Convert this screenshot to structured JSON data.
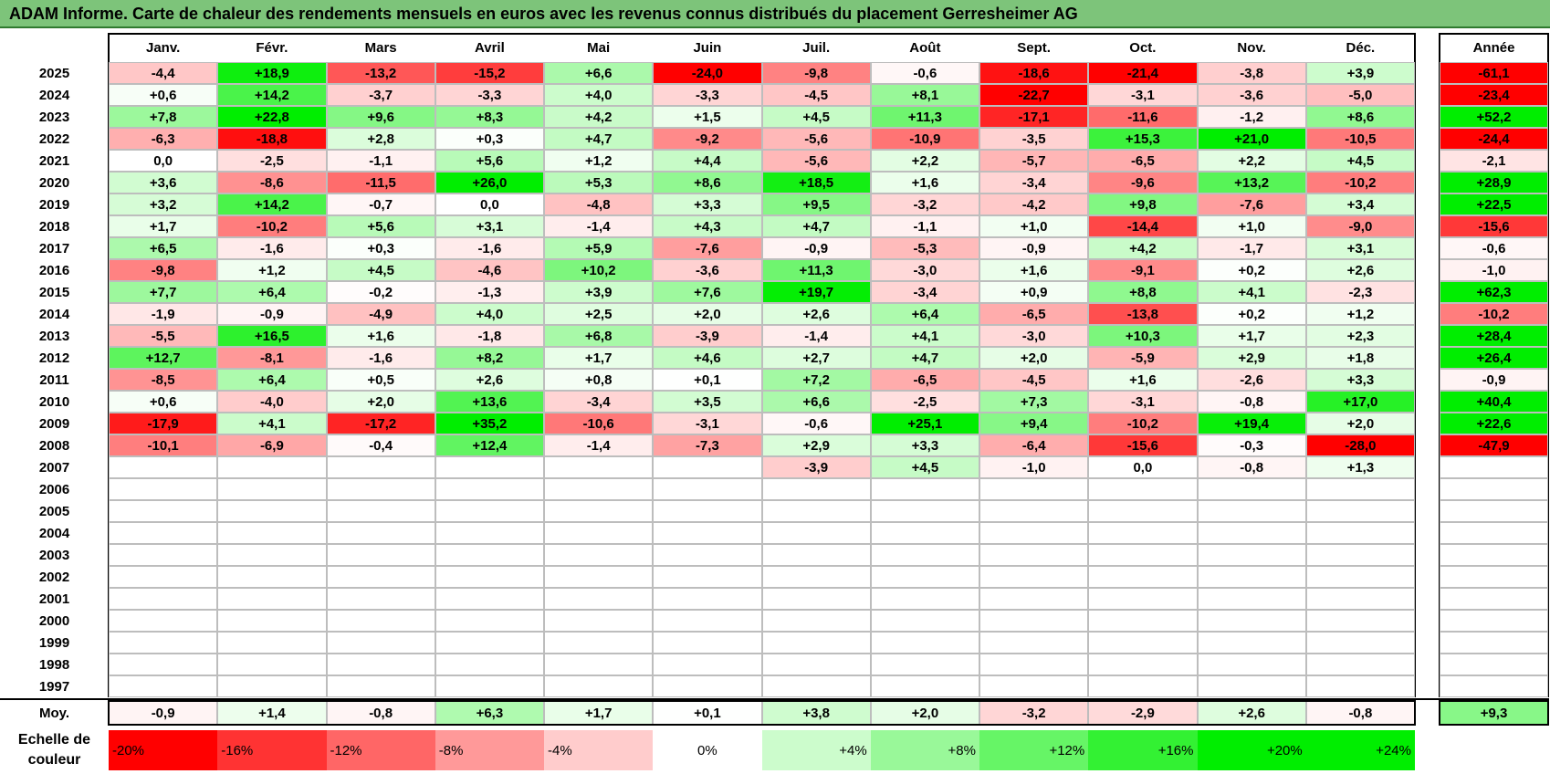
{
  "page": {
    "title": "ADAM Informe. Carte de chaleur des rendements mensuels en euros avec les revenus connus distribués du placement Gerresheimer AG"
  },
  "chart_data": {
    "type": "heatmap",
    "title": "ADAM Informe. Carte de chaleur des rendements mensuels en euros avec les revenus connus distribués du placement Gerresheimer AG",
    "columns": [
      "Janv.",
      "Févr.",
      "Mars",
      "Avril",
      "Mai",
      "Juin",
      "Juil.",
      "Août",
      "Sept.",
      "Oct.",
      "Nov.",
      "Déc."
    ],
    "year_column_label": "Année",
    "average_label": "Moy.",
    "years": [
      "2025",
      "2024",
      "2023",
      "2022",
      "2021",
      "2020",
      "2019",
      "2018",
      "2017",
      "2016",
      "2015",
      "2014",
      "2013",
      "2012",
      "2011",
      "2010",
      "2009",
      "2008",
      "2007",
      "2006",
      "2005",
      "2004",
      "2003",
      "2002",
      "2001",
      "2000",
      "1999",
      "1998",
      "1997"
    ],
    "values": [
      [
        "-4,4",
        "+18,9",
        "-13,2",
        "-15,2",
        "+6,6",
        "-24,0",
        "-9,8",
        "-0,6",
        "-18,6",
        "-21,4",
        "-3,8",
        "+3,9"
      ],
      [
        "+0,6",
        "+14,2",
        "-3,7",
        "-3,3",
        "+4,0",
        "-3,3",
        "-4,5",
        "+8,1",
        "-22,7",
        "-3,1",
        "-3,6",
        "-5,0"
      ],
      [
        "+7,8",
        "+22,8",
        "+9,6",
        "+8,3",
        "+4,2",
        "+1,5",
        "+4,5",
        "+11,3",
        "-17,1",
        "-11,6",
        "-1,2",
        "+8,6"
      ],
      [
        "-6,3",
        "-18,8",
        "+2,8",
        "+0,3",
        "+4,7",
        "-9,2",
        "-5,6",
        "-10,9",
        "-3,5",
        "+15,3",
        "+21,0",
        "-10,5"
      ],
      [
        "0,0",
        "-2,5",
        "-1,1",
        "+5,6",
        "+1,2",
        "+4,4",
        "-5,6",
        "+2,2",
        "-5,7",
        "-6,5",
        "+2,2",
        "+4,5"
      ],
      [
        "+3,6",
        "-8,6",
        "-11,5",
        "+26,0",
        "+5,3",
        "+8,6",
        "+18,5",
        "+1,6",
        "-3,4",
        "-9,6",
        "+13,2",
        "-10,2"
      ],
      [
        "+3,2",
        "+14,2",
        "-0,7",
        "0,0",
        "-4,8",
        "+3,3",
        "+9,5",
        "-3,2",
        "-4,2",
        "+9,8",
        "-7,6",
        "+3,4"
      ],
      [
        "+1,7",
        "-10,2",
        "+5,6",
        "+3,1",
        "-1,4",
        "+4,3",
        "+4,7",
        "-1,1",
        "+1,0",
        "-14,4",
        "+1,0",
        "-9,0"
      ],
      [
        "+6,5",
        "-1,6",
        "+0,3",
        "-1,6",
        "+5,9",
        "-7,6",
        "-0,9",
        "-5,3",
        "-0,9",
        "+4,2",
        "-1,7",
        "+3,1"
      ],
      [
        "-9,8",
        "+1,2",
        "+4,5",
        "-4,6",
        "+10,2",
        "-3,6",
        "+11,3",
        "-3,0",
        "+1,6",
        "-9,1",
        "+0,2",
        "+2,6"
      ],
      [
        "+7,7",
        "+6,4",
        "-0,2",
        "-1,3",
        "+3,9",
        "+7,6",
        "+19,7",
        "-3,4",
        "+0,9",
        "+8,8",
        "+4,1",
        "-2,3"
      ],
      [
        "-1,9",
        "-0,9",
        "-4,9",
        "+4,0",
        "+2,5",
        "+2,0",
        "+2,6",
        "+6,4",
        "-6,5",
        "-13,8",
        "+0,2",
        "+1,2"
      ],
      [
        "-5,5",
        "+16,5",
        "+1,6",
        "-1,8",
        "+6,8",
        "-3,9",
        "-1,4",
        "+4,1",
        "-3,0",
        "+10,3",
        "+1,7",
        "+2,3"
      ],
      [
        "+12,7",
        "-8,1",
        "-1,6",
        "+8,2",
        "+1,7",
        "+4,6",
        "+2,7",
        "+4,7",
        "+2,0",
        "-5,9",
        "+2,9",
        "+1,8"
      ],
      [
        "-8,5",
        "+6,4",
        "+0,5",
        "+2,6",
        "+0,8",
        "+0,1",
        "+7,2",
        "-6,5",
        "-4,5",
        "+1,6",
        "-2,6",
        "+3,3"
      ],
      [
        "+0,6",
        "-4,0",
        "+2,0",
        "+13,6",
        "-3,4",
        "+3,5",
        "+6,6",
        "-2,5",
        "+7,3",
        "-3,1",
        "-0,8",
        "+17,0"
      ],
      [
        "-17,9",
        "+4,1",
        "-17,2",
        "+35,2",
        "-10,6",
        "-3,1",
        "-0,6",
        "+25,1",
        "+9,4",
        "-10,2",
        "+19,4",
        "+2,0"
      ],
      [
        "-10,1",
        "-6,9",
        "-0,4",
        "+12,4",
        "-1,4",
        "-7,3",
        "+2,9",
        "+3,3",
        "-6,4",
        "-15,6",
        "-0,3",
        "-28,0"
      ],
      [
        "",
        "",
        "",
        "",
        "",
        "",
        "-3,9",
        "+4,5",
        "-1,0",
        "0,0",
        "-0,8",
        "+1,3"
      ],
      [
        "",
        "",
        "",
        "",
        "",
        "",
        "",
        "",
        "",
        "",
        "",
        ""
      ],
      [
        "",
        "",
        "",
        "",
        "",
        "",
        "",
        "",
        "",
        "",
        "",
        ""
      ],
      [
        "",
        "",
        "",
        "",
        "",
        "",
        "",
        "",
        "",
        "",
        "",
        ""
      ],
      [
        "",
        "",
        "",
        "",
        "",
        "",
        "",
        "",
        "",
        "",
        "",
        ""
      ],
      [
        "",
        "",
        "",
        "",
        "",
        "",
        "",
        "",
        "",
        "",
        "",
        ""
      ],
      [
        "",
        "",
        "",
        "",
        "",
        "",
        "",
        "",
        "",
        "",
        "",
        ""
      ],
      [
        "",
        "",
        "",
        "",
        "",
        "",
        "",
        "",
        "",
        "",
        "",
        ""
      ],
      [
        "",
        "",
        "",
        "",
        "",
        "",
        "",
        "",
        "",
        "",
        "",
        ""
      ],
      [
        "",
        "",
        "",
        "",
        "",
        "",
        "",
        "",
        "",
        "",
        "",
        ""
      ],
      [
        "",
        "",
        "",
        "",
        "",
        "",
        "",
        "",
        "",
        "",
        "",
        ""
      ]
    ],
    "annual": [
      "-61,1",
      "-23,4",
      "+52,2",
      "-24,4",
      "-2,1",
      "+28,9",
      "+22,5",
      "-15,6",
      "-0,6",
      "-1,0",
      "+62,3",
      "-10,2",
      "+28,4",
      "+26,4",
      "-0,9",
      "+40,4",
      "+22,6",
      "-47,9",
      "",
      "",
      "",
      "",
      "",
      "",
      "",
      "",
      "",
      "",
      ""
    ],
    "averages": [
      "-0,9",
      "+1,4",
      "-0,8",
      "+6,3",
      "+1,7",
      "+0,1",
      "+3,8",
      "+2,0",
      "-3,2",
      "-2,9",
      "+2,6",
      "-0,8"
    ],
    "annual_average": "+9,3",
    "legend_title": [
      "Echelle de",
      "couleur"
    ],
    "legend_stops": [
      "-20%",
      "-16%",
      "-12%",
      "-8%",
      "-4%",
      "0%",
      "+4%",
      "+8%",
      "+12%",
      "+16%",
      "+20%",
      "+24%"
    ],
    "colors": {
      "negative_max": "#ff0000",
      "positive_max": "#00ee00",
      "neutral": "#ffffff"
    }
  }
}
